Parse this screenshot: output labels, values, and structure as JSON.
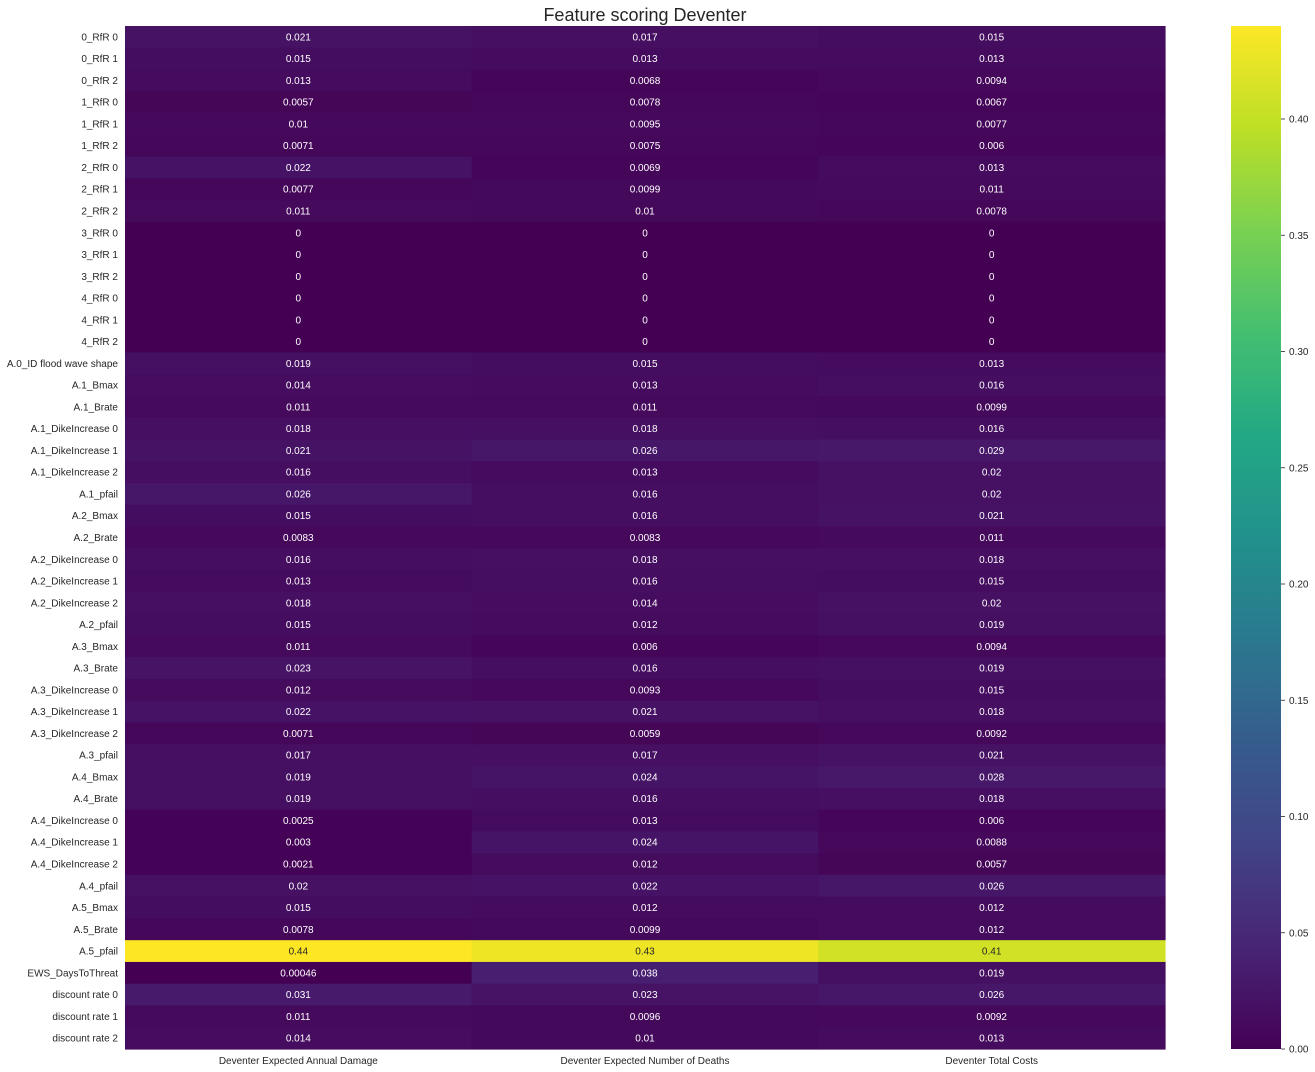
{
  "chart_data": {
    "type": "heatmap",
    "title": "Feature scoring Deventer",
    "xlabel": "",
    "ylabel": "",
    "columns": [
      "Deventer Expected Annual Damage",
      "Deventer Expected Number of Deaths",
      "Deventer Total Costs"
    ],
    "rows": [
      "0_RfR 0",
      "0_RfR 1",
      "0_RfR 2",
      "1_RfR 0",
      "1_RfR 1",
      "1_RfR 2",
      "2_RfR 0",
      "2_RfR 1",
      "2_RfR 2",
      "3_RfR 0",
      "3_RfR 1",
      "3_RfR 2",
      "4_RfR 0",
      "4_RfR 1",
      "4_RfR 2",
      "A.0_ID flood wave shape",
      "A.1_Bmax",
      "A.1_Brate",
      "A.1_DikeIncrease 0",
      "A.1_DikeIncrease 1",
      "A.1_DikeIncrease 2",
      "A.1_pfail",
      "A.2_Bmax",
      "A.2_Brate",
      "A.2_DikeIncrease 0",
      "A.2_DikeIncrease 1",
      "A.2_DikeIncrease 2",
      "A.2_pfail",
      "A.3_Bmax",
      "A.3_Brate",
      "A.3_DikeIncrease 0",
      "A.3_DikeIncrease 1",
      "A.3_DikeIncrease 2",
      "A.3_pfail",
      "A.4_Bmax",
      "A.4_Brate",
      "A.4_DikeIncrease 0",
      "A.4_DikeIncrease 1",
      "A.4_DikeIncrease 2",
      "A.4_pfail",
      "A.5_Bmax",
      "A.5_Brate",
      "A.5_pfail",
      "EWS_DaysToThreat",
      "discount rate 0",
      "discount rate 1",
      "discount rate 2"
    ],
    "values": [
      [
        "0.021",
        "0.017",
        "0.015"
      ],
      [
        "0.015",
        "0.013",
        "0.013"
      ],
      [
        "0.013",
        "0.0068",
        "0.0094"
      ],
      [
        "0.0057",
        "0.0078",
        "0.0067"
      ],
      [
        "0.01",
        "0.0095",
        "0.0077"
      ],
      [
        "0.0071",
        "0.0075",
        "0.006"
      ],
      [
        "0.022",
        "0.0069",
        "0.013"
      ],
      [
        "0.0077",
        "0.0099",
        "0.011"
      ],
      [
        "0.011",
        "0.01",
        "0.0078"
      ],
      [
        "0",
        "0",
        "0"
      ],
      [
        "0",
        "0",
        "0"
      ],
      [
        "0",
        "0",
        "0"
      ],
      [
        "0",
        "0",
        "0"
      ],
      [
        "0",
        "0",
        "0"
      ],
      [
        "0",
        "0",
        "0"
      ],
      [
        "0.019",
        "0.015",
        "0.013"
      ],
      [
        "0.014",
        "0.013",
        "0.016"
      ],
      [
        "0.011",
        "0.011",
        "0.0099"
      ],
      [
        "0.018",
        "0.018",
        "0.016"
      ],
      [
        "0.021",
        "0.026",
        "0.029"
      ],
      [
        "0.016",
        "0.013",
        "0.02"
      ],
      [
        "0.026",
        "0.016",
        "0.02"
      ],
      [
        "0.015",
        "0.016",
        "0.021"
      ],
      [
        "0.0083",
        "0.0083",
        "0.011"
      ],
      [
        "0.016",
        "0.018",
        "0.018"
      ],
      [
        "0.013",
        "0.016",
        "0.015"
      ],
      [
        "0.018",
        "0.014",
        "0.02"
      ],
      [
        "0.015",
        "0.012",
        "0.019"
      ],
      [
        "0.011",
        "0.006",
        "0.0094"
      ],
      [
        "0.023",
        "0.016",
        "0.019"
      ],
      [
        "0.012",
        "0.0093",
        "0.015"
      ],
      [
        "0.022",
        "0.021",
        "0.018"
      ],
      [
        "0.0071",
        "0.0059",
        "0.0092"
      ],
      [
        "0.017",
        "0.017",
        "0.021"
      ],
      [
        "0.019",
        "0.024",
        "0.028"
      ],
      [
        "0.019",
        "0.016",
        "0.018"
      ],
      [
        "0.0025",
        "0.013",
        "0.006"
      ],
      [
        "0.003",
        "0.024",
        "0.0088"
      ],
      [
        "0.0021",
        "0.012",
        "0.0057"
      ],
      [
        "0.02",
        "0.022",
        "0.026"
      ],
      [
        "0.015",
        "0.012",
        "0.012"
      ],
      [
        "0.0078",
        "0.0099",
        "0.012"
      ],
      [
        "0.44",
        "0.43",
        "0.41"
      ],
      [
        "0.00046",
        "0.038",
        "0.019"
      ],
      [
        "0.031",
        "0.023",
        "0.026"
      ],
      [
        "0.011",
        "0.0096",
        "0.0092"
      ],
      [
        "0.014",
        "0.01",
        "0.013"
      ]
    ],
    "colormap": "viridis",
    "vmin": 0,
    "vmax": 0.44,
    "colorbar_ticks": [
      "0.00",
      "0.05",
      "0.10",
      "0.15",
      "0.20",
      "0.25",
      "0.30",
      "0.35",
      "0.40"
    ]
  }
}
